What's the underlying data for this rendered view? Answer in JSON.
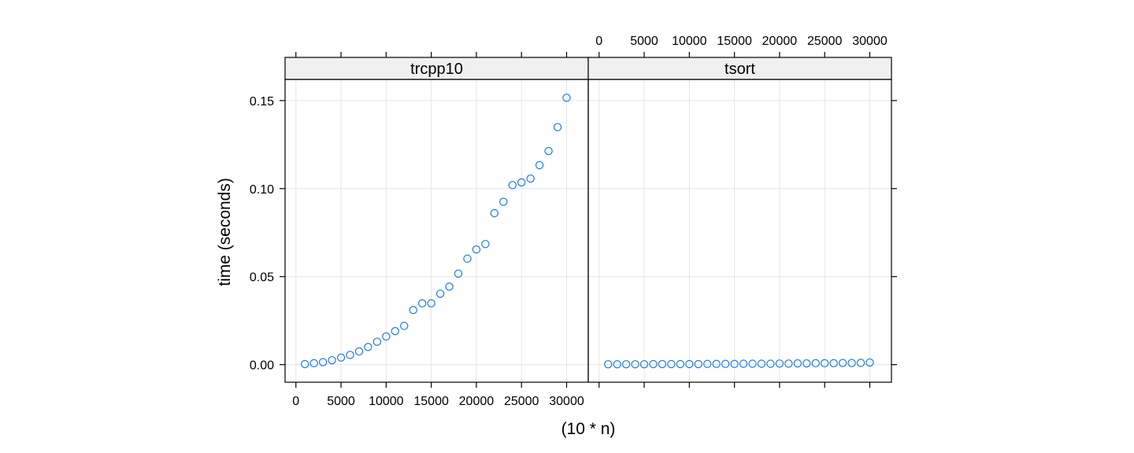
{
  "chart_data": {
    "type": "scatter",
    "xlabel": "(10 * n)",
    "ylabel": "time (seconds)",
    "xlim": [
      -1200,
      32400
    ],
    "ylim": [
      -0.01,
      0.162
    ],
    "x_ticks": [
      0,
      5000,
      10000,
      15000,
      20000,
      25000,
      30000
    ],
    "x_tick_labels": [
      "0",
      "5000",
      "10000",
      "15000",
      "20000",
      "25000",
      "30000"
    ],
    "y_ticks": [
      0,
      0.05,
      0.1,
      0.15
    ],
    "y_tick_labels": [
      "0.00",
      "0.05",
      "0.10",
      "0.15"
    ],
    "grid": true,
    "point_color": "#1f78e6",
    "panels": [
      {
        "name": "trcpp10",
        "x": [
          1000,
          2000,
          3000,
          4000,
          5000,
          6000,
          7000,
          8000,
          9000,
          10000,
          11000,
          12000,
          13000,
          14000,
          15000,
          16000,
          17000,
          18000,
          19000,
          20000,
          21000,
          22000,
          23000,
          24000,
          25000,
          26000,
          27000,
          28000,
          29000,
          30000
        ],
        "y": [
          0.0003,
          0.0008,
          0.0014,
          0.0025,
          0.004,
          0.0055,
          0.0075,
          0.01,
          0.013,
          0.016,
          0.019,
          0.022,
          0.031,
          0.0348,
          0.0348,
          0.0403,
          0.0443,
          0.0517,
          0.0602,
          0.0654,
          0.0685,
          0.086,
          0.0925,
          0.102,
          0.1035,
          0.1057,
          0.1133,
          0.1213,
          0.1349,
          0.1516
        ]
      },
      {
        "name": "tsort",
        "x": [
          1000,
          2000,
          3000,
          4000,
          5000,
          6000,
          7000,
          8000,
          9000,
          10000,
          11000,
          12000,
          13000,
          14000,
          15000,
          16000,
          17000,
          18000,
          19000,
          20000,
          21000,
          22000,
          23000,
          24000,
          25000,
          26000,
          27000,
          28000,
          29000,
          30000
        ],
        "y": [
          0.0002,
          0.0002,
          0.0002,
          0.0002,
          0.0002,
          0.0003,
          0.0003,
          0.0003,
          0.0003,
          0.0003,
          0.0003,
          0.0004,
          0.0004,
          0.0004,
          0.0004,
          0.0005,
          0.0005,
          0.0005,
          0.0005,
          0.0006,
          0.0006,
          0.0007,
          0.0007,
          0.0008,
          0.0008,
          0.0008,
          0.0009,
          0.0009,
          0.001,
          0.0012
        ]
      }
    ]
  }
}
